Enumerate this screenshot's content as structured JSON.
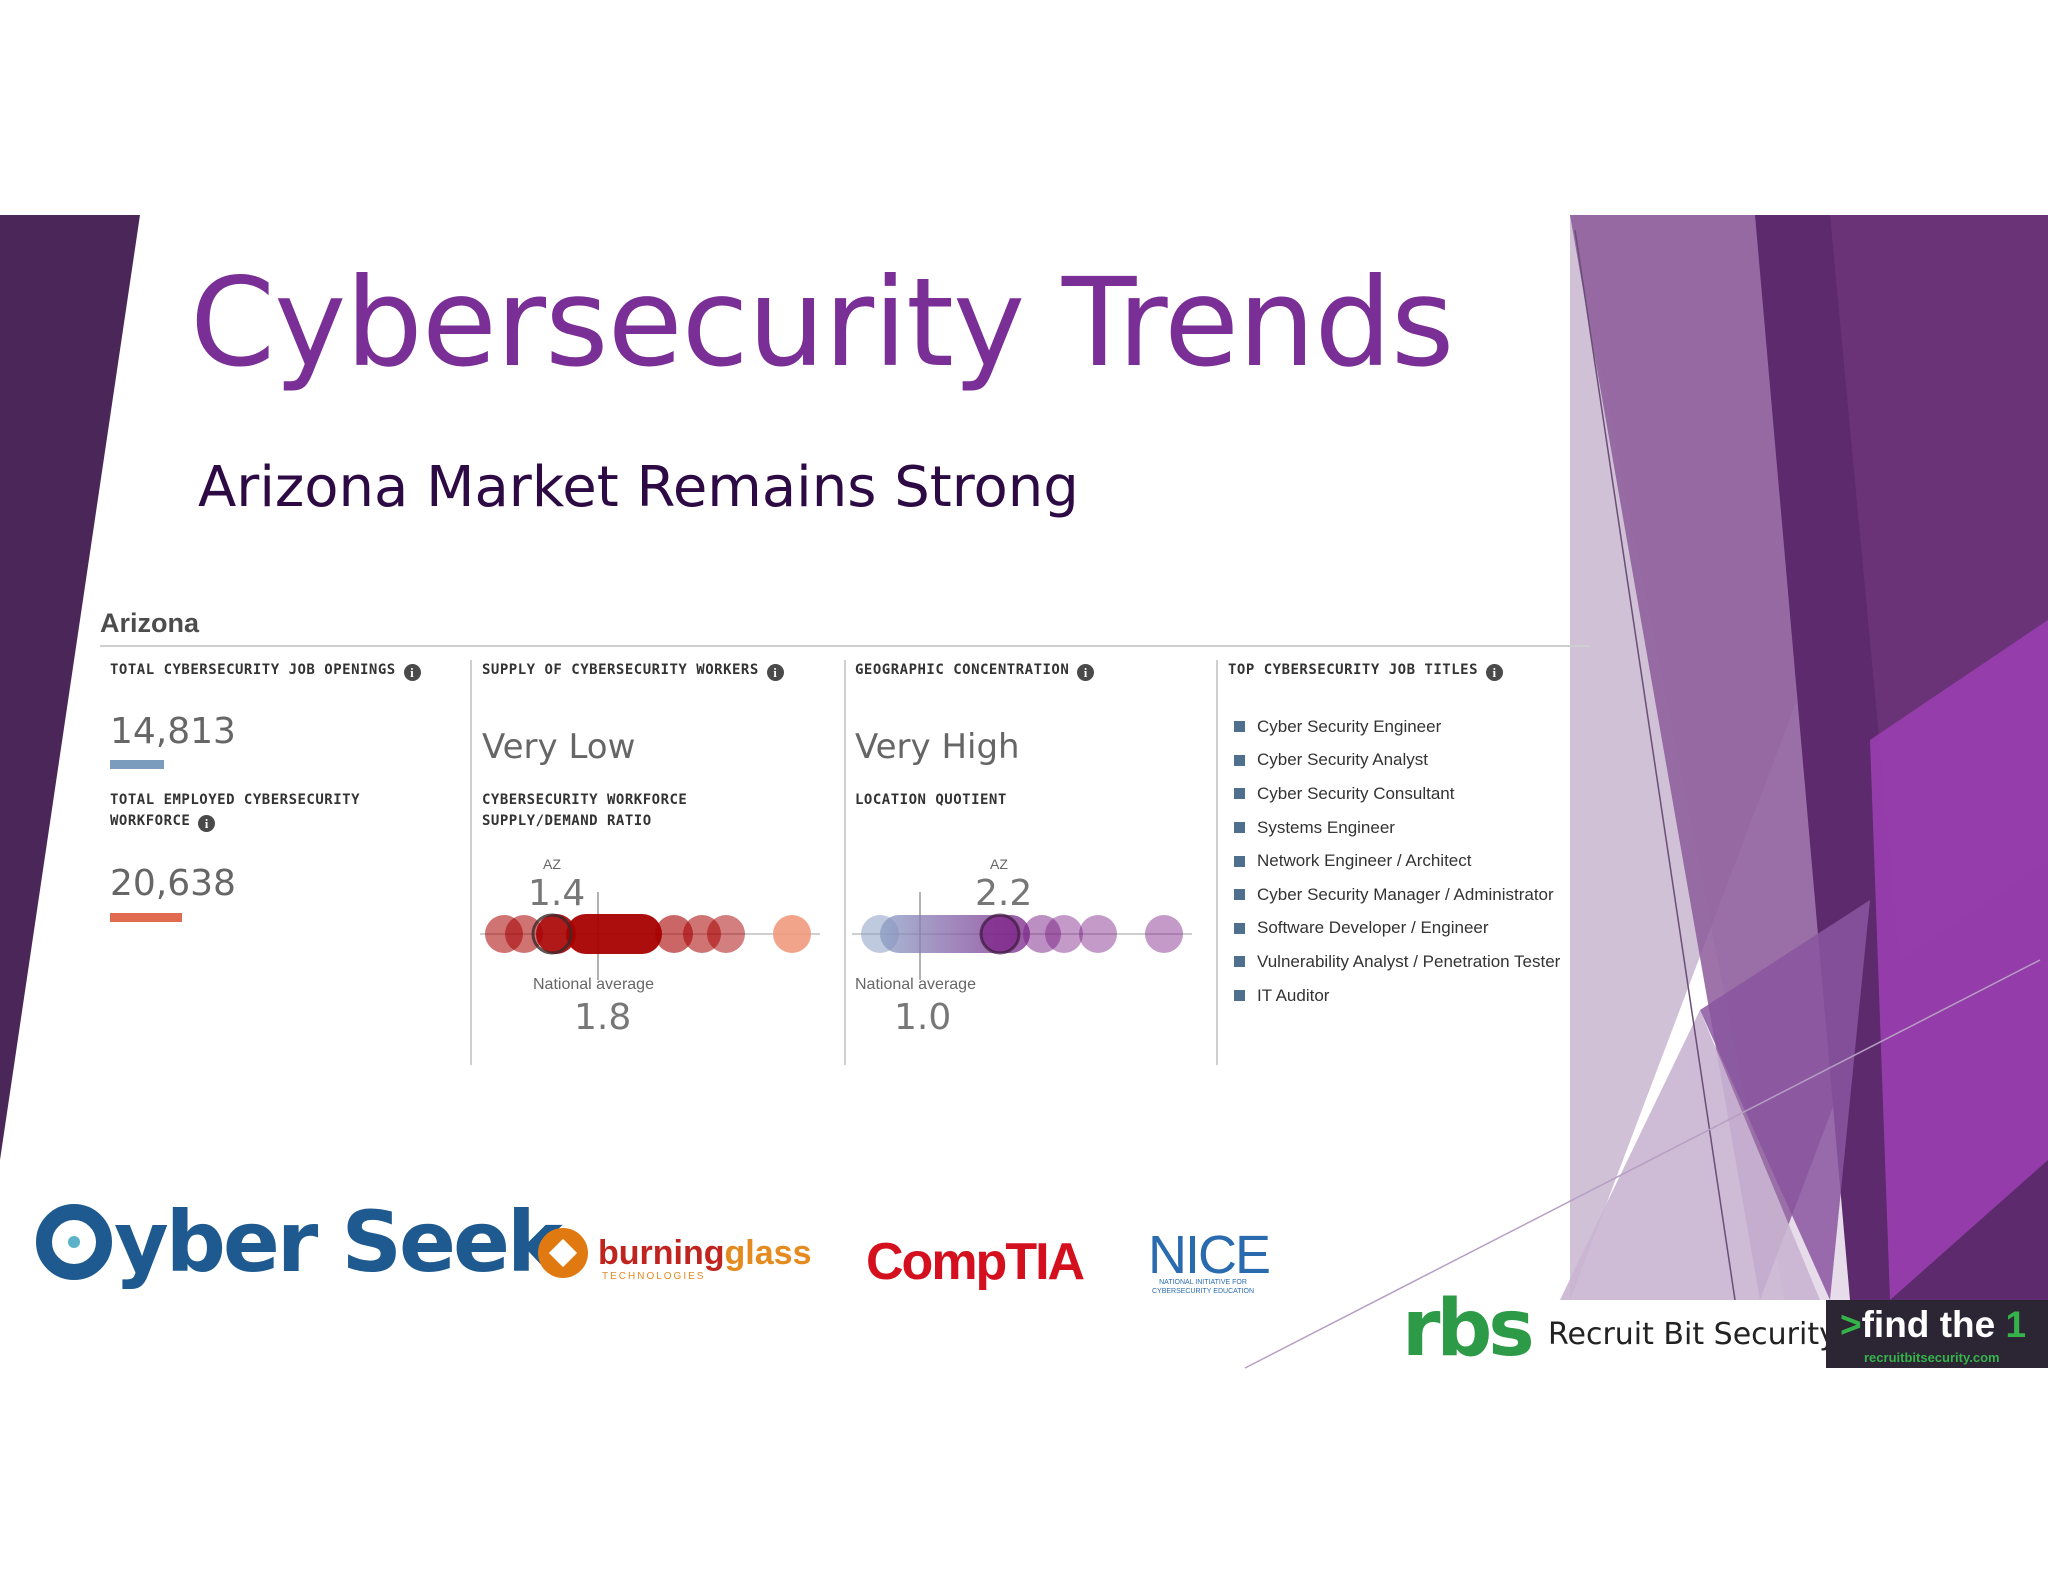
{
  "slide": {
    "title": "Cybersecurity Trends",
    "subtitle": "Arizona Market Remains Strong"
  },
  "dashboard": {
    "state": "Arizona",
    "openings": {
      "header": "TOTAL CYBERSECURITY JOB OPENINGS",
      "value": "14,813",
      "bar_color": "#7b9cbd"
    },
    "workforce": {
      "header_line1": "TOTAL EMPLOYED CYBERSECURITY",
      "header_line2": "WORKFORCE",
      "value": "20,638",
      "bar_color": "#e06b50"
    },
    "supply": {
      "header": "SUPPLY OF CYBERSECURITY WORKERS",
      "level": "Very Low",
      "sub_line1": "CYBERSECURITY WORKFORCE",
      "sub_line2": "SUPPLY/DEMAND RATIO",
      "az_label": "AZ",
      "az_value": "1.4",
      "national_label": "National average",
      "national_value": "1.8",
      "accent_color": "#a80000"
    },
    "concentration": {
      "header": "GEOGRAPHIC CONCENTRATION",
      "level": "Very High",
      "sub": "LOCATION QUOTIENT",
      "az_label": "AZ",
      "az_value": "2.2",
      "national_label": "National average",
      "national_value": "1.0",
      "accent_color": "#7a1f86"
    },
    "top_titles": {
      "header": "TOP CYBERSECURITY JOB TITLES",
      "items": [
        "Cyber Security Engineer",
        "Cyber Security Analyst",
        "Cyber Security Consultant",
        "Systems Engineer",
        "Network Engineer / Architect",
        "Cyber Security Manager / Administrator",
        "Software Developer / Engineer",
        "Vulnerability Analyst / Penetration Tester",
        "IT Auditor"
      ]
    }
  },
  "logos": {
    "cyberseek": "yber Seek",
    "burning_glass_a": "burning",
    "burning_glass_b": "glass",
    "burning_glass_tag": "TECHNOLOGIES",
    "comptia": "CompTIA",
    "nice": "NICE",
    "nice_sub": "NATIONAL INITIATIVE FOR CYBERSECURITY EDUCATION"
  },
  "brand": {
    "mark": "rbs",
    "name": "Recruit Bit Security",
    "tagline_prefix": ">",
    "tagline": "find the",
    "tagline_suffix": "1",
    "url": "recruitbitsecurity.com"
  },
  "colors": {
    "title": "#7a2f96",
    "purple_dark": "#4b1f5e",
    "purple_mid": "#7a4585",
    "purple_bright": "#9a3fb0",
    "brand_green": "#2c9a46"
  }
}
